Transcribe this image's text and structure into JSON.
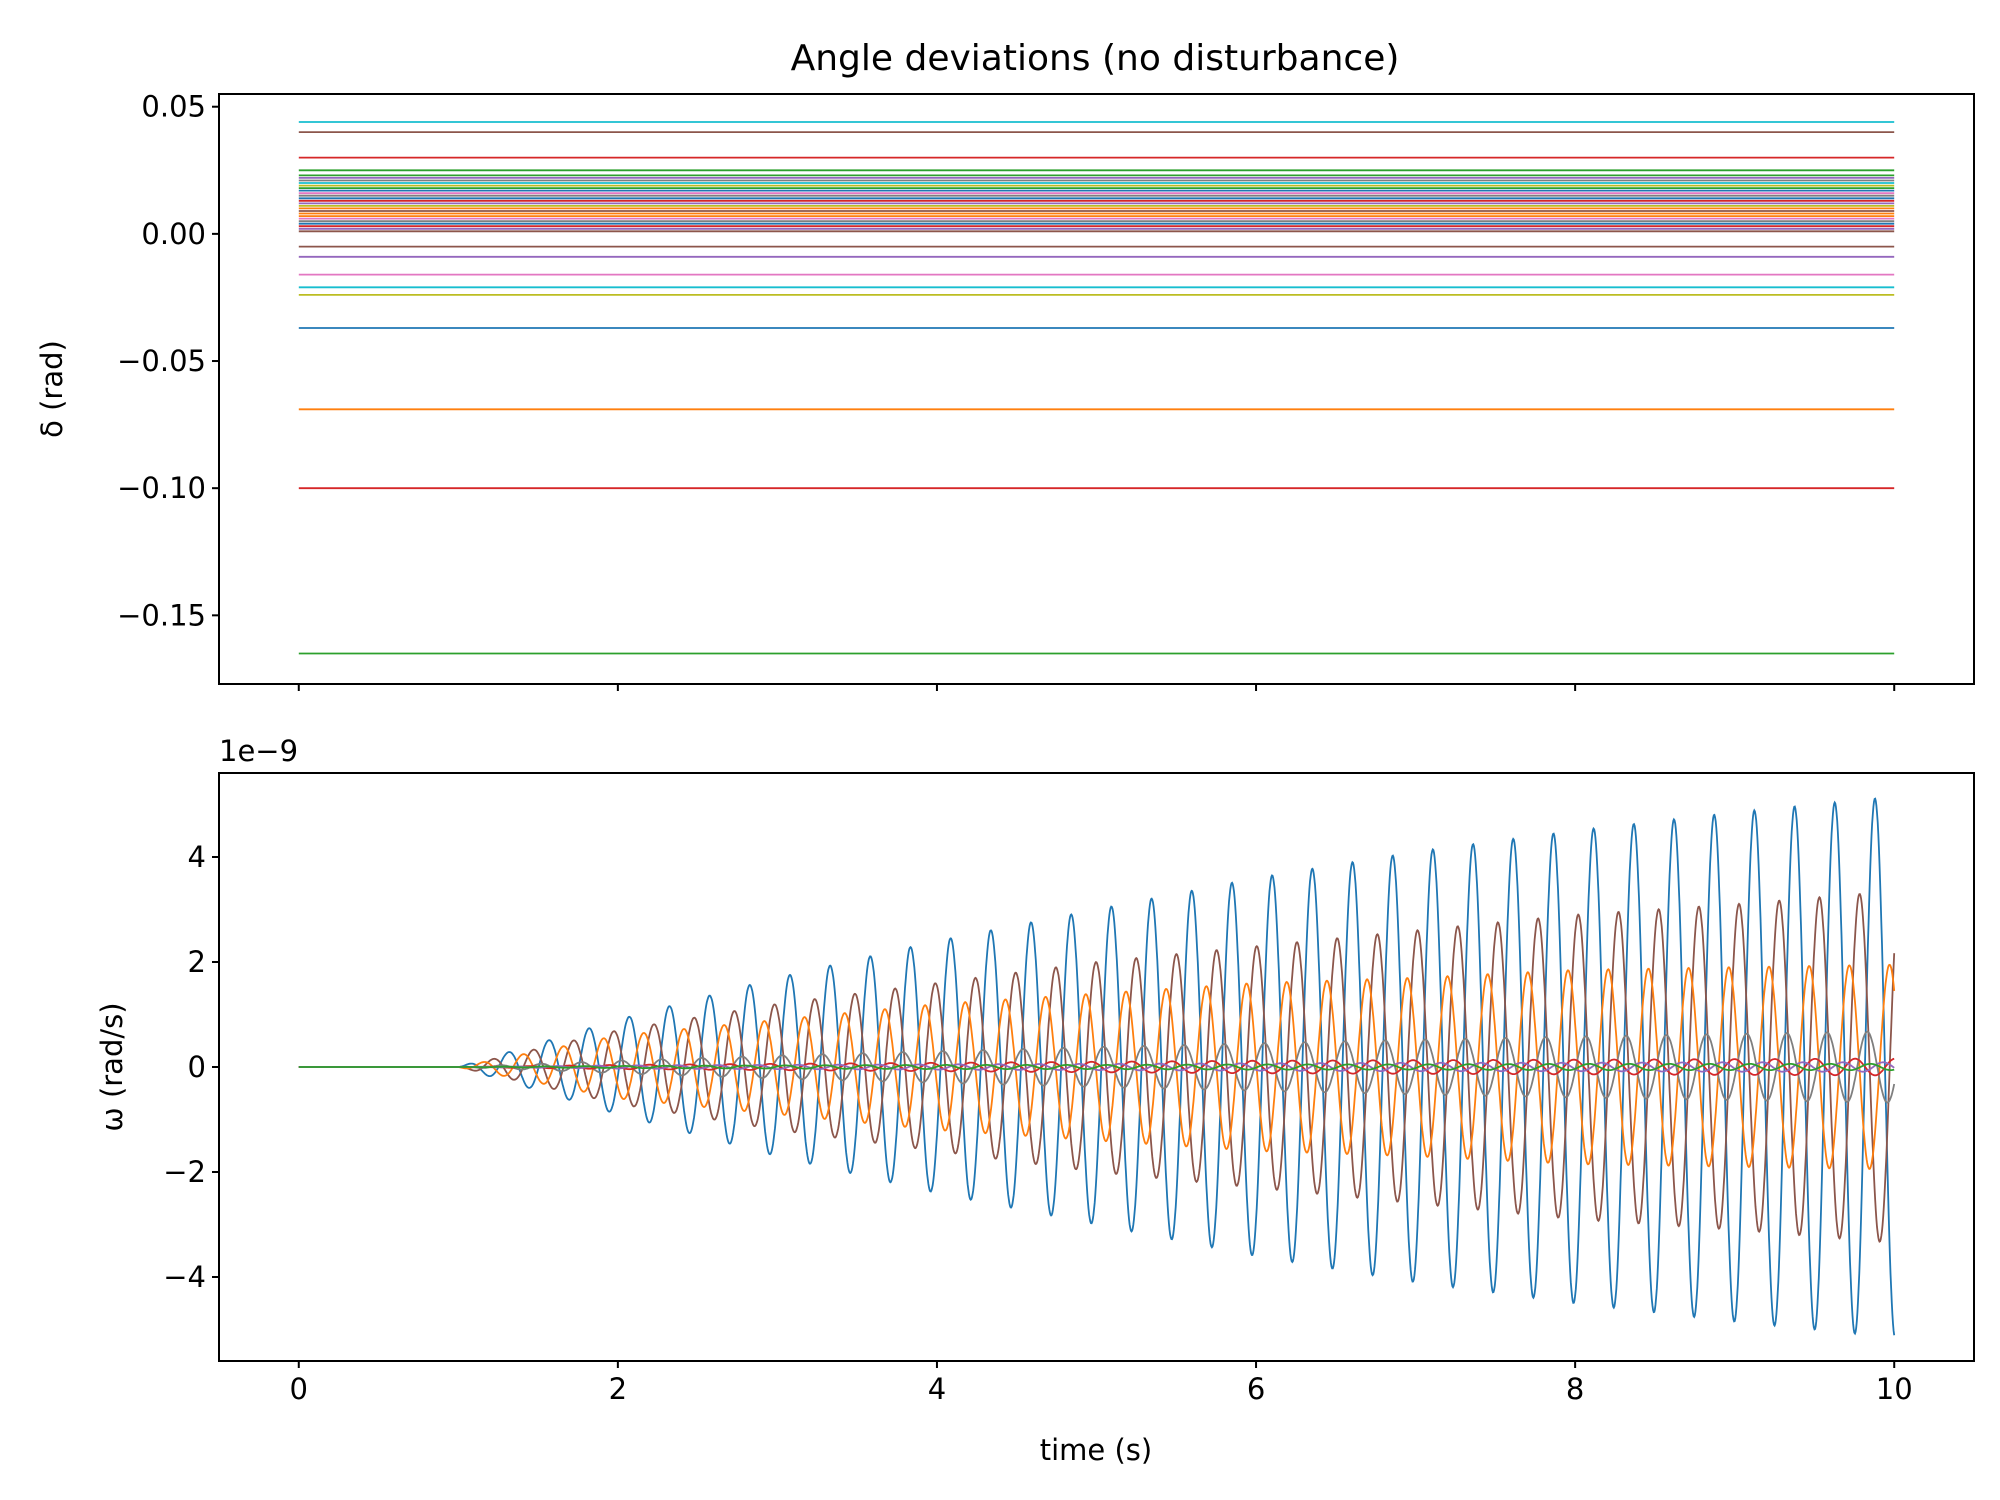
{
  "chart_data": [
    {
      "type": "line",
      "title": "Angle deviations (no disturbance)",
      "xlabel": "",
      "ylabel": "δ (rad)",
      "xlim": [
        -0.5,
        10.5
      ],
      "ylim": [
        -0.177,
        0.055
      ],
      "x": [
        0,
        10
      ],
      "xticks": [
        0,
        2,
        4,
        6,
        8,
        10
      ],
      "yticks": [
        {
          "value": 0.05,
          "label": "0.05"
        },
        {
          "value": 0.0,
          "label": "0.00"
        },
        {
          "value": -0.05,
          "label": "−0.05"
        },
        {
          "value": -0.1,
          "label": "−0.10"
        },
        {
          "value": -0.15,
          "label": "−0.15"
        }
      ],
      "grid": false,
      "series": [
        {
          "values": [
            -0.037,
            -0.037
          ],
          "color": "#1f77b4"
        },
        {
          "values": [
            -0.069,
            -0.069
          ],
          "color": "#ff7f0e"
        },
        {
          "values": [
            -0.165,
            -0.165
          ],
          "color": "#2ca02c"
        },
        {
          "values": [
            -0.1,
            -0.1
          ],
          "color": "#d62728"
        },
        {
          "values": [
            -0.009,
            -0.009
          ],
          "color": "#9467bd"
        },
        {
          "values": [
            0.04,
            0.04
          ],
          "color": "#8c564b"
        },
        {
          "values": [
            -0.016,
            -0.016
          ],
          "color": "#e377c2"
        },
        {
          "values": [
            0.021,
            0.021
          ],
          "color": "#7f7f7f"
        },
        {
          "values": [
            -0.024,
            -0.024
          ],
          "color": "#bcbd22"
        },
        {
          "values": [
            0.044,
            0.044
          ],
          "color": "#17becf"
        },
        {
          "values": [
            0.017,
            0.017
          ],
          "color": "#1f77b4"
        },
        {
          "values": [
            0.008,
            0.008
          ],
          "color": "#ff7f0e"
        },
        {
          "values": [
            0.023,
            0.023
          ],
          "color": "#2ca02c"
        },
        {
          "values": [
            0.03,
            0.03
          ],
          "color": "#d62728"
        },
        {
          "values": [
            0.012,
            0.012
          ],
          "color": "#9467bd"
        },
        {
          "values": [
            -0.005,
            -0.005
          ],
          "color": "#8c564b"
        },
        {
          "values": [
            0.006,
            0.006
          ],
          "color": "#e377c2"
        },
        {
          "values": [
            0.015,
            0.015
          ],
          "color": "#7f7f7f"
        },
        {
          "values": [
            0.019,
            0.019
          ],
          "color": "#bcbd22"
        },
        {
          "values": [
            -0.021,
            -0.021
          ],
          "color": "#17becf"
        },
        {
          "values": [
            0.004,
            0.004
          ],
          "color": "#1f77b4"
        },
        {
          "values": [
            0.01,
            0.01
          ],
          "color": "#ff7f0e"
        },
        {
          "values": [
            0.025,
            0.025
          ],
          "color": "#2ca02c"
        },
        {
          "values": [
            0.013,
            0.013
          ],
          "color": "#d62728"
        },
        {
          "values": [
            0.002,
            0.002
          ],
          "color": "#9467bd"
        },
        {
          "values": [
            0.009,
            0.009
          ],
          "color": "#8c564b"
        },
        {
          "values": [
            0.016,
            0.016
          ],
          "color": "#e377c2"
        },
        {
          "values": [
            0.005,
            0.005
          ],
          "color": "#7f7f7f"
        },
        {
          "values": [
            0.011,
            0.011
          ],
          "color": "#bcbd22"
        },
        {
          "values": [
            0.02,
            0.02
          ],
          "color": "#17becf"
        },
        {
          "values": [
            0.014,
            0.014
          ],
          "color": "#1f77b4"
        },
        {
          "values": [
            0.007,
            0.007
          ],
          "color": "#ff7f0e"
        },
        {
          "values": [
            0.018,
            0.018
          ],
          "color": "#2ca02c"
        },
        {
          "values": [
            0.003,
            0.003
          ],
          "color": "#d62728"
        },
        {
          "values": [
            0.022,
            0.022
          ],
          "color": "#9467bd"
        },
        {
          "values": [
            0.001,
            0.001
          ],
          "color": "#8c564b"
        }
      ]
    },
    {
      "type": "line",
      "title": "",
      "xlabel": "time (s)",
      "ylabel": "ω (rad/s)",
      "offset_text": "1e−9",
      "xlim": [
        -0.5,
        10.5
      ],
      "ylim": [
        -5.6,
        5.6
      ],
      "xticks": [
        0,
        2,
        4,
        6,
        8,
        10
      ],
      "yticks": [
        {
          "value": 4,
          "label": "4"
        },
        {
          "value": 2,
          "label": "2"
        },
        {
          "value": 0,
          "label": "0"
        },
        {
          "value": -2,
          "label": "−2"
        },
        {
          "value": -4,
          "label": "−4"
        }
      ],
      "grid": false,
      "oscillation": {
        "onset_s": 1.0,
        "frequency_hz": 3.97,
        "end_s": 10
      },
      "series": [
        {
          "color": "#1f77b4",
          "envelope": {
            "t": [
              1,
              2,
              3,
              4,
              5,
              6,
              7,
              8,
              9,
              10
            ],
            "amp": [
              0,
              0.9,
              1.7,
              2.4,
              3.0,
              3.6,
              4.1,
              4.5,
              4.85,
              5.15
            ]
          },
          "phase": 0.0
        },
        {
          "color": "#8c564b",
          "envelope": {
            "t": [
              1,
              2,
              3,
              4,
              5,
              6,
              7,
              8,
              9,
              10
            ],
            "amp": [
              0,
              0.7,
              1.2,
              1.6,
              2.0,
              2.3,
              2.6,
              2.9,
              3.1,
              3.35
            ]
          },
          "phase": 2.4
        },
        {
          "color": "#ff7f0e",
          "envelope": {
            "t": [
              1,
              2,
              3,
              4,
              5,
              6,
              7,
              8,
              9,
              10
            ],
            "amp": [
              0,
              0.6,
              0.9,
              1.2,
              1.4,
              1.6,
              1.7,
              1.85,
              1.9,
              1.95
            ]
          },
          "phase": 4.0
        },
        {
          "color": "#7f7f7f",
          "envelope": {
            "t": [
              1,
              2,
              3,
              4,
              5,
              6,
              7,
              8,
              9,
              10
            ],
            "amp": [
              0,
              0.12,
              0.22,
              0.3,
              0.38,
              0.45,
              0.52,
              0.58,
              0.63,
              0.68
            ]
          },
          "phase": 1.2
        },
        {
          "color": "#d62728",
          "envelope": {
            "t": [
              1,
              2,
              3,
              4,
              5,
              6,
              7,
              8,
              9,
              10
            ],
            "amp": [
              0,
              0.04,
              0.06,
              0.08,
              0.1,
              0.12,
              0.13,
              0.14,
              0.15,
              0.16
            ]
          },
          "phase": 3.1
        },
        {
          "color": "#9467bd",
          "envelope": {
            "t": [
              1,
              2,
              3,
              4,
              5,
              6,
              7,
              8,
              9,
              10
            ],
            "amp": [
              0,
              0.03,
              0.04,
              0.05,
              0.06,
              0.07,
              0.08,
              0.08,
              0.09,
              0.09
            ]
          },
          "phase": 5.0
        },
        {
          "color": "#2ca02c",
          "envelope": {
            "t": [
              1,
              2,
              3,
              4,
              5,
              6,
              7,
              8,
              9,
              10
            ],
            "amp": [
              0,
              0.02,
              0.03,
              0.04,
              0.04,
              0.05,
              0.05,
              0.06,
              0.06,
              0.06
            ]
          },
          "phase": 0.7
        }
      ]
    }
  ]
}
